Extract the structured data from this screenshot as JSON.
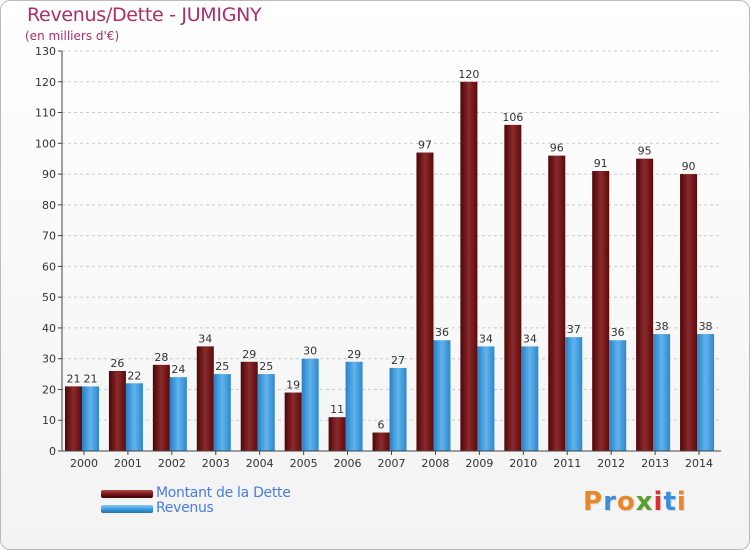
{
  "chart_data": {
    "type": "bar",
    "title": "Revenus/Dette - JUMIGNY",
    "subtitle": "(en milliers d'€)",
    "categories": [
      "2000",
      "2001",
      "2002",
      "2003",
      "2004",
      "2005",
      "2006",
      "2007",
      "2008",
      "2009",
      "2010",
      "2011",
      "2012",
      "2013",
      "2014"
    ],
    "series": [
      {
        "name": "Montant de la Dette",
        "color": "#7a1518",
        "values": [
          21,
          26,
          28,
          34,
          29,
          19,
          11,
          6,
          97,
          120,
          106,
          96,
          91,
          95,
          90
        ]
      },
      {
        "name": "Revenus",
        "color": "#3d9ee3",
        "values": [
          21,
          22,
          24,
          25,
          25,
          30,
          29,
          27,
          36,
          34,
          34,
          37,
          36,
          38,
          38
        ]
      }
    ],
    "ylim": [
      0,
      130
    ],
    "yticks": [
      0,
      10,
      20,
      30,
      40,
      50,
      60,
      70,
      80,
      90,
      100,
      110,
      120,
      130
    ],
    "grid": true,
    "legend": "bottom-left"
  },
  "branding": {
    "logo_text": "Proxiti",
    "logo_colors": [
      "#e8872a",
      "#3b8fd9",
      "#e8872a",
      "#5a9e2e",
      "#d8312f",
      "#3b8fd9",
      "#e8872a"
    ]
  }
}
